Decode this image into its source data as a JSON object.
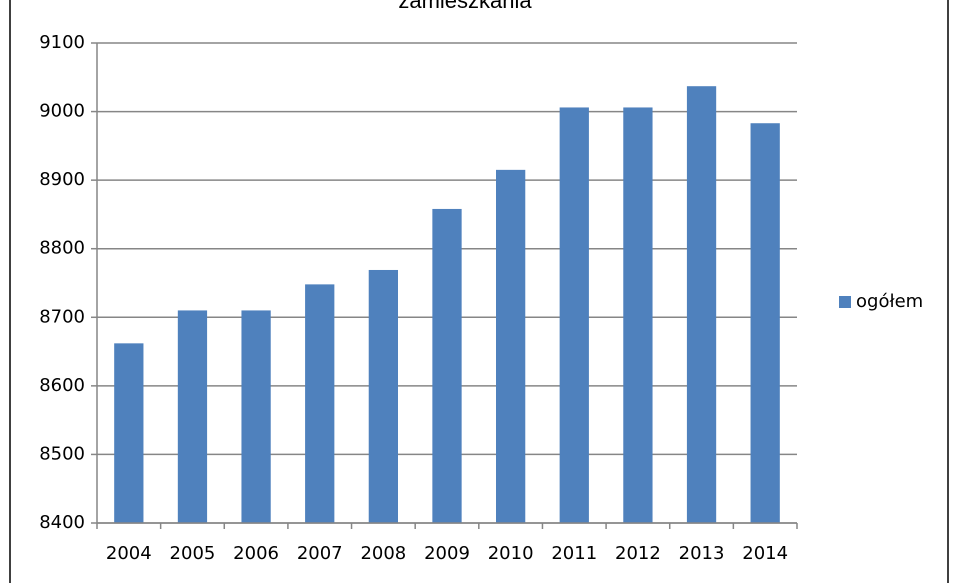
{
  "chart_data": {
    "type": "bar",
    "title": "zamieszkania",
    "categories": [
      "2004",
      "2005",
      "2006",
      "2007",
      "2008",
      "2009",
      "2010",
      "2011",
      "2012",
      "2013",
      "2014"
    ],
    "series": [
      {
        "name": "ogółem",
        "color": "#4f81bd",
        "values": [
          8662,
          8710,
          8710,
          8748,
          8769,
          8858,
          8915,
          9006,
          9006,
          9037,
          8983
        ]
      }
    ],
    "ylim": [
      8400,
      9100
    ],
    "yticks": [
      8400,
      8500,
      8600,
      8700,
      8800,
      8900,
      9000,
      9100
    ],
    "grid": true,
    "legend": "right"
  }
}
